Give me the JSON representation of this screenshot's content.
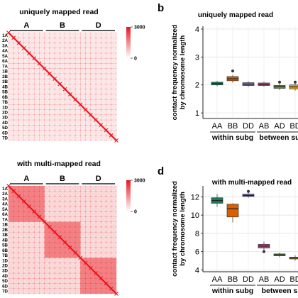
{
  "panels": {
    "b": "b",
    "d": "d"
  },
  "heatmap_top": {
    "title": "uniquely mapped read",
    "group_labels": [
      "A",
      "B",
      "D"
    ],
    "row_labels": [
      "1A",
      "2A",
      "3A",
      "4A",
      "5A",
      "6A",
      "7A",
      "1B",
      "2B",
      "3B",
      "4B",
      "5B",
      "6B",
      "7B",
      "1D",
      "2D",
      "3D",
      "4D",
      "5D",
      "6D",
      "7D"
    ],
    "colorbar": {
      "max": "3000",
      "min": "0"
    },
    "color_high": "#e8161d",
    "color_low": "#ffffff"
  },
  "heatmap_bottom": {
    "title": "with multi-mapped read",
    "group_labels": [
      "A",
      "B",
      "D"
    ],
    "row_labels": [
      "1A",
      "2A",
      "3A",
      "4A",
      "5A",
      "6A",
      "7A",
      "1B",
      "2B",
      "3B",
      "4B",
      "5B",
      "6B",
      "7B",
      "1D",
      "2D",
      "3D",
      "4D",
      "5D",
      "6D",
      "7D"
    ],
    "colorbar": {
      "max": "3000",
      "min": "0"
    },
    "color_high": "#e8161d",
    "color_low": "#ffffff"
  },
  "chart_data": [
    {
      "type": "box",
      "title": "uniquely mapped read",
      "ylabel_line1": "contact frequency normalized",
      "ylabel_line2": "by chromosome length",
      "categories": [
        "AA",
        "BB",
        "DD",
        "AB",
        "AD",
        "BD"
      ],
      "groups": [
        "within subg",
        "between su"
      ],
      "ylim": [
        0.8,
        4.1
      ],
      "yticks": [
        "1",
        "2",
        "3",
        "4"
      ],
      "colors": [
        "#1a7a5a",
        "#d95f02",
        "#6d6bb0",
        "#d4378a",
        "#5a9a2a",
        "#d9a21a"
      ],
      "boxes": [
        {
          "q1": 2.0,
          "median": 2.05,
          "q3": 2.1,
          "low": 1.95,
          "high": 2.15,
          "outliers": []
        },
        {
          "q1": 2.15,
          "median": 2.22,
          "q3": 2.3,
          "low": 2.08,
          "high": 2.36,
          "outliers": [
            2.5
          ]
        },
        {
          "q1": 1.98,
          "median": 2.03,
          "q3": 2.08,
          "low": 1.93,
          "high": 2.13,
          "outliers": []
        },
        {
          "q1": 1.98,
          "median": 2.02,
          "q3": 2.07,
          "low": 1.94,
          "high": 2.12,
          "outliers": []
        },
        {
          "q1": 1.88,
          "median": 1.94,
          "q3": 1.98,
          "low": 1.82,
          "high": 2.03,
          "outliers": [
            2.1
          ]
        },
        {
          "q1": 1.86,
          "median": 1.93,
          "q3": 2.0,
          "low": 1.8,
          "high": 2.06,
          "outliers": [
            2.1
          ]
        }
      ]
    },
    {
      "type": "box",
      "title": "with multi-mapped read",
      "ylabel_line1": "contact frequency normalized",
      "ylabel_line2": "by chromosome length",
      "categories": [
        "AA",
        "BB",
        "DD",
        "AB",
        "AD",
        "BD"
      ],
      "groups": [
        "within subg",
        "between s"
      ],
      "ylim": [
        3.8,
        13.2
      ],
      "yticks": [
        "4",
        "6",
        "8",
        "10",
        "12"
      ],
      "colors": [
        "#1a7a5a",
        "#d95f02",
        "#6d6bb0",
        "#d4378a",
        "#5a9a2a",
        "#d9a21a"
      ],
      "boxes": [
        {
          "q1": 11.3,
          "median": 11.6,
          "q3": 11.9,
          "low": 10.9,
          "high": 12.3,
          "outliers": []
        },
        {
          "q1": 9.8,
          "median": 10.7,
          "q3": 11.2,
          "low": 9.2,
          "high": 11.3,
          "outliers": []
        },
        {
          "q1": 12.05,
          "median": 12.15,
          "q3": 12.3,
          "low": 11.9,
          "high": 12.5,
          "outliers": [
            12.6
          ]
        },
        {
          "q1": 6.4,
          "median": 6.6,
          "q3": 6.8,
          "low": 6.0,
          "high": 7.1,
          "outliers": [
            6.0
          ]
        },
        {
          "q1": 5.55,
          "median": 5.65,
          "q3": 5.75,
          "low": 5.4,
          "high": 5.9,
          "outliers": []
        },
        {
          "q1": 5.2,
          "median": 5.3,
          "q3": 5.4,
          "low": 5.0,
          "high": 5.6,
          "outliers": []
        }
      ]
    }
  ]
}
